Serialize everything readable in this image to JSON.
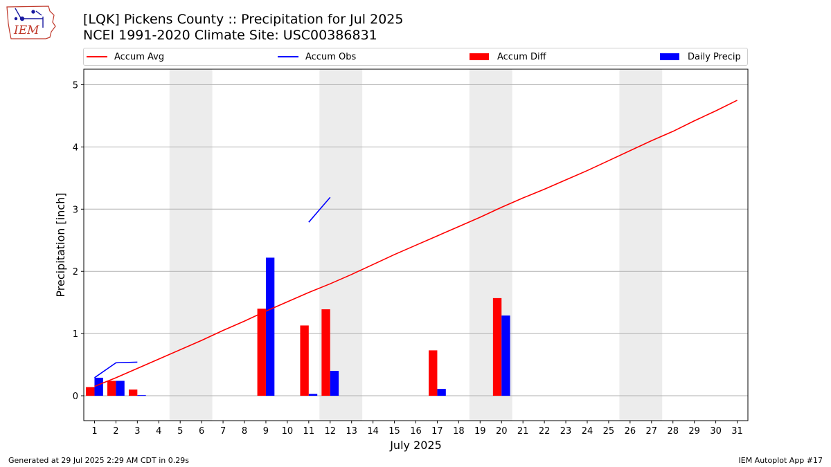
{
  "header": {
    "title_line1": "[LQK] Pickens County :: Precipitation for Jul 2025",
    "title_line2": "NCEI 1991-2020 Climate Site: USC00386831",
    "logo_text": "IEM"
  },
  "footer": {
    "generated": "Generated at 29 Jul 2025 2:29 AM CDT in 0.29s",
    "app": "IEM Autoplot App #17"
  },
  "colors": {
    "accum_avg": "#ff0000",
    "accum_obs": "#0000ff",
    "accum_diff": "#ff0000",
    "daily_precip": "#0000ff",
    "weekend_shade": "#ececec",
    "grid": "#b0b0b0"
  },
  "chart_data": {
    "type": "bar",
    "xlabel": "July 2025",
    "ylabel": "Precipitation [inch]",
    "xlim": [
      0.5,
      31.5
    ],
    "ylim": [
      -0.4,
      5.25
    ],
    "yticks": [
      0,
      1,
      2,
      3,
      4,
      5
    ],
    "grid": "horizontal",
    "legend_placement": "top",
    "days": [
      1,
      2,
      3,
      4,
      5,
      6,
      7,
      8,
      9,
      10,
      11,
      12,
      13,
      14,
      15,
      16,
      17,
      18,
      19,
      20,
      21,
      22,
      23,
      24,
      25,
      26,
      27,
      28,
      29,
      30,
      31
    ],
    "weekends": [
      [
        5,
        6
      ],
      [
        12,
        13
      ],
      [
        19,
        20
      ],
      [
        26,
        27
      ]
    ],
    "series": [
      {
        "name": "Accum Avg",
        "kind": "line",
        "x": [
          1,
          2,
          3,
          4,
          5,
          6,
          7,
          8,
          9,
          10,
          11,
          12,
          13,
          14,
          15,
          16,
          17,
          18,
          19,
          20,
          21,
          22,
          23,
          24,
          25,
          26,
          27,
          28,
          29,
          30,
          31
        ],
        "values": [
          0.15,
          0.29,
          0.44,
          0.59,
          0.74,
          0.89,
          1.05,
          1.2,
          1.36,
          1.51,
          1.66,
          1.8,
          1.95,
          2.11,
          2.27,
          2.42,
          2.57,
          2.72,
          2.87,
          3.03,
          3.18,
          3.32,
          3.47,
          3.62,
          3.78,
          3.94,
          4.1,
          4.25,
          4.42,
          4.58,
          4.75
        ]
      },
      {
        "name": "Accum Obs",
        "kind": "line",
        "segments": [
          {
            "x": [
              1,
              2,
              3
            ],
            "values": [
              0.29,
              0.53,
              0.54
            ]
          },
          {
            "x": [
              11,
              12
            ],
            "values": [
              2.79,
              3.19
            ]
          }
        ]
      },
      {
        "name": "Accum Diff",
        "kind": "bar",
        "x": [
          1,
          2,
          3,
          9,
          11,
          12,
          17,
          20
        ],
        "values": [
          0.14,
          0.24,
          0.1,
          1.4,
          1.13,
          1.39,
          0.73,
          1.57
        ]
      },
      {
        "name": "Daily Precip",
        "kind": "bar",
        "x": [
          1,
          2,
          3,
          9,
          11,
          12,
          17,
          20
        ],
        "values": [
          0.29,
          0.24,
          0.01,
          2.22,
          0.03,
          0.4,
          0.11,
          1.29
        ]
      }
    ]
  }
}
